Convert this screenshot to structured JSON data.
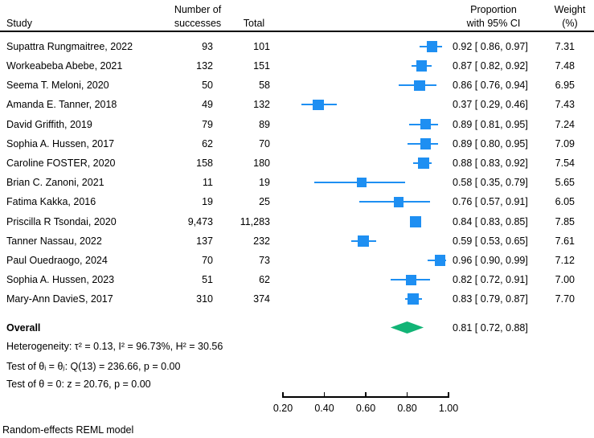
{
  "header": {
    "study": "Study",
    "successes_line1": "Number of",
    "successes_line2": "successes",
    "total": "Total",
    "proportion_line1": "Proportion",
    "proportion_line2": "with 95% CI",
    "weight_line1": "Weight",
    "weight_line2": "(%)"
  },
  "chart_data": {
    "type": "forest",
    "xlabel": "",
    "axis": {
      "min": 0.2,
      "max": 1.0,
      "tick_values": [
        0.2,
        0.4,
        0.6,
        0.8,
        1.0
      ],
      "tick_labels": [
        "0.20",
        "0.40",
        "0.60",
        "0.80",
        "1.00"
      ]
    },
    "colors": {
      "marker": "#1e8ff2",
      "diamond": "#12b476",
      "axis": "#000000"
    },
    "studies": [
      {
        "study": "Supattra Rungmaitree, 2022",
        "successes": "93",
        "total": "101",
        "est": 0.92,
        "lo": 0.86,
        "hi": 0.97,
        "ci_label": "0.92 [ 0.86, 0.97]",
        "weight": "7.31"
      },
      {
        "study": "Workeabeba Abebe, 2021",
        "successes": "132",
        "total": "151",
        "est": 0.87,
        "lo": 0.82,
        "hi": 0.92,
        "ci_label": "0.87 [ 0.82, 0.92]",
        "weight": "7.48"
      },
      {
        "study": "Seema T. Meloni, 2020",
        "successes": "50",
        "total": "58",
        "est": 0.86,
        "lo": 0.76,
        "hi": 0.94,
        "ci_label": "0.86 [ 0.76, 0.94]",
        "weight": "6.95"
      },
      {
        "study": "Amanda E. Tanner, 2018",
        "successes": "49",
        "total": "132",
        "est": 0.37,
        "lo": 0.29,
        "hi": 0.46,
        "ci_label": "0.37 [ 0.29, 0.46]",
        "weight": "7.43"
      },
      {
        "study": "David Griffith, 2019",
        "successes": "79",
        "total": "89",
        "est": 0.89,
        "lo": 0.81,
        "hi": 0.95,
        "ci_label": "0.89 [ 0.81, 0.95]",
        "weight": "7.24"
      },
      {
        "study": "Sophia A. Hussen, 2017",
        "successes": "62",
        "total": "70",
        "est": 0.89,
        "lo": 0.8,
        "hi": 0.95,
        "ci_label": "0.89 [ 0.80, 0.95]",
        "weight": "7.09"
      },
      {
        "study": "Caroline FOSTER, 2020",
        "successes": "158",
        "total": "180",
        "est": 0.88,
        "lo": 0.83,
        "hi": 0.92,
        "ci_label": "0.88 [ 0.83, 0.92]",
        "weight": "7.54"
      },
      {
        "study": "Brian C. Zanoni, 2021",
        "successes": "11",
        "total": "19",
        "est": 0.58,
        "lo": 0.35,
        "hi": 0.79,
        "ci_label": "0.58 [ 0.35, 0.79]",
        "weight": "5.65"
      },
      {
        "study": "Fatima Kakka, 2016",
        "successes": "19",
        "total": "25",
        "est": 0.76,
        "lo": 0.57,
        "hi": 0.91,
        "ci_label": "0.76 [ 0.57, 0.91]",
        "weight": "6.05"
      },
      {
        "study": "Priscilla R Tsondai, 2020",
        "successes": "9,473",
        "total": "11,283",
        "est": 0.84,
        "lo": 0.83,
        "hi": 0.85,
        "ci_label": "0.84 [ 0.83, 0.85]",
        "weight": "7.85"
      },
      {
        "study": "Tanner Nassau, 2022",
        "successes": "137",
        "total": "232",
        "est": 0.59,
        "lo": 0.53,
        "hi": 0.65,
        "ci_label": "0.59 [ 0.53, 0.65]",
        "weight": "7.61"
      },
      {
        "study": "Paul Ouedraogo, 2024",
        "successes": "70",
        "total": "73",
        "est": 0.96,
        "lo": 0.9,
        "hi": 0.99,
        "ci_label": "0.96 [ 0.90, 0.99]",
        "weight": "7.12"
      },
      {
        "study": "Sophia A. Hussen, 2023",
        "successes": "51",
        "total": "62",
        "est": 0.82,
        "lo": 0.72,
        "hi": 0.91,
        "ci_label": "0.82 [ 0.72, 0.91]",
        "weight": "7.00"
      },
      {
        "study": "Mary-Ann DavieS, 2017",
        "successes": "310",
        "total": "374",
        "est": 0.83,
        "lo": 0.79,
        "hi": 0.87,
        "ci_label": "0.83 [ 0.79, 0.87]",
        "weight": "7.70"
      }
    ],
    "overall": {
      "label": "Overall",
      "est": 0.81,
      "lo": 0.72,
      "hi": 0.88,
      "ci_label": "0.81 [ 0.72, 0.88]"
    },
    "stats": {
      "heterogeneity": "Heterogeneity: τ² = 0.13, I² = 96.73%, H² = 30.56",
      "test_theta_ij": "Test of θᵢ = θⱼ: Q(13) = 236.66, p = 0.00",
      "test_theta_zero": "Test of θ = 0: z = 20.76, p = 0.00"
    },
    "footnote": "Random-effects REML model"
  }
}
